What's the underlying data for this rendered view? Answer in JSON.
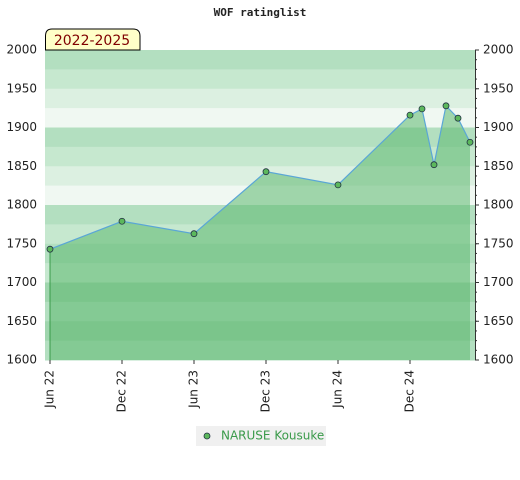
{
  "chart_data": {
    "type": "line",
    "title": "WOF ratinglist",
    "badge": "2022-2025",
    "x": [
      "2022-06",
      "2022-12",
      "2023-06",
      "2023-12",
      "2024-06",
      "2024-12",
      "2025-01",
      "2025-02",
      "2025-03",
      "2025-04",
      "2025-05"
    ],
    "series": [
      {
        "name": "NARUSE Kousuke",
        "color": "#5aa6d6",
        "fill": "#5cb870",
        "marker": "#5cb85c",
        "values": [
          1743,
          1779,
          1763,
          1843,
          1826,
          1916,
          1924,
          1852,
          1928,
          1912,
          1881
        ]
      }
    ],
    "xticks": [
      {
        "value": "2022-06",
        "label": "Jun 22"
      },
      {
        "value": "2022-12",
        "label": "Dec 22"
      },
      {
        "value": "2023-06",
        "label": "Jun 23"
      },
      {
        "value": "2023-12",
        "label": "Dec 23"
      },
      {
        "value": "2024-06",
        "label": "Jun 24"
      },
      {
        "value": "2024-12",
        "label": "Dec 24"
      }
    ],
    "ylim": [
      1600,
      2000
    ],
    "yticks": [
      1600,
      1650,
      1700,
      1750,
      1800,
      1850,
      1900,
      1950,
      2000
    ],
    "right_axis": true,
    "legend": "bottom"
  }
}
